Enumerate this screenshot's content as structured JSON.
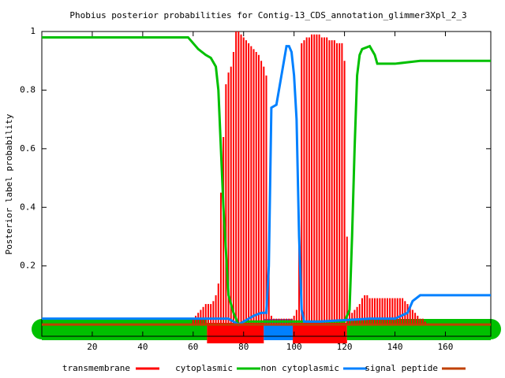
{
  "chart_data": {
    "type": "line",
    "title": "Phobius posterior probabilities for Contig-13_CDS_annotation_glimmer3Xpl_2_3",
    "ylabel": "Posterior label probability",
    "xlim": [
      0,
      178
    ],
    "ylim": [
      -0.04,
      1
    ],
    "xticks": [
      20,
      40,
      60,
      80,
      100,
      120,
      140,
      160
    ],
    "yticks": [
      0.2,
      0.4,
      0.6,
      0.8,
      1
    ],
    "series": [
      {
        "name": "transmembrane",
        "color": "#ff0000",
        "style": "impulses",
        "x": [
          60,
          61,
          62,
          63,
          64,
          65,
          66,
          67,
          68,
          69,
          70,
          71,
          72,
          73,
          74,
          75,
          76,
          77,
          78,
          79,
          80,
          81,
          82,
          83,
          84,
          85,
          86,
          87,
          88,
          89,
          90,
          91,
          92,
          93,
          94,
          95,
          96,
          97,
          98,
          99,
          100,
          101,
          102,
          103,
          104,
          105,
          106,
          107,
          108,
          109,
          110,
          111,
          112,
          113,
          114,
          115,
          116,
          117,
          118,
          119,
          120,
          121,
          122,
          123,
          124,
          125,
          126,
          127,
          128,
          129,
          130,
          131,
          132,
          133,
          134,
          135,
          136,
          137,
          138,
          139,
          140,
          141,
          142,
          143,
          144,
          145,
          146,
          147,
          148,
          149,
          150,
          151,
          152
        ],
        "values": [
          0.02,
          0.03,
          0.04,
          0.05,
          0.06,
          0.07,
          0.07,
          0.07,
          0.08,
          0.1,
          0.14,
          0.45,
          0.64,
          0.82,
          0.86,
          0.88,
          0.93,
          1.0,
          1.0,
          0.99,
          0.98,
          0.97,
          0.96,
          0.95,
          0.94,
          0.93,
          0.92,
          0.9,
          0.88,
          0.85,
          0.2,
          0.03,
          0.02,
          0.02,
          0.02,
          0.02,
          0.02,
          0.02,
          0.02,
          0.02,
          0.03,
          0.05,
          0.3,
          0.96,
          0.97,
          0.98,
          0.98,
          0.99,
          0.99,
          0.99,
          0.99,
          0.98,
          0.98,
          0.98,
          0.97,
          0.97,
          0.97,
          0.96,
          0.96,
          0.96,
          0.9,
          0.3,
          0.05,
          0.04,
          0.05,
          0.06,
          0.07,
          0.09,
          0.1,
          0.1,
          0.09,
          0.09,
          0.09,
          0.09,
          0.09,
          0.09,
          0.09,
          0.09,
          0.09,
          0.09,
          0.09,
          0.09,
          0.09,
          0.09,
          0.08,
          0.07,
          0.06,
          0.05,
          0.04,
          0.03,
          0.02,
          0.02,
          0.01
        ]
      },
      {
        "name": "cytoplasmic",
        "color": "#00c000",
        "style": "line",
        "x": [
          0,
          58,
          62,
          65,
          67,
          69,
          70,
          71,
          72,
          73,
          74,
          76,
          78,
          80,
          100,
          120,
          122,
          123,
          124,
          125,
          126,
          127,
          130,
          132,
          133,
          140,
          150,
          178
        ],
        "values": [
          0.98,
          0.98,
          0.94,
          0.92,
          0.91,
          0.88,
          0.8,
          0.6,
          0.4,
          0.25,
          0.1,
          0.04,
          0.0,
          0.01,
          0.01,
          0.01,
          0.05,
          0.3,
          0.6,
          0.85,
          0.92,
          0.94,
          0.95,
          0.92,
          0.89,
          0.89,
          0.9,
          0.9
        ]
      },
      {
        "name": "non cytoplasmic",
        "color": "#0080ff",
        "style": "line",
        "x": [
          0,
          60,
          70,
          74,
          78,
          84,
          87,
          89,
          90,
          91,
          93,
          95,
          97,
          98,
          99,
          100,
          101,
          102,
          103,
          104,
          110,
          130,
          140,
          145,
          147,
          150,
          178
        ],
        "values": [
          0.02,
          0.02,
          0.02,
          0.02,
          0.0,
          0.03,
          0.04,
          0.04,
          0.2,
          0.74,
          0.75,
          0.85,
          0.95,
          0.95,
          0.93,
          0.85,
          0.7,
          0.3,
          0.05,
          0.01,
          0.01,
          0.02,
          0.02,
          0.04,
          0.08,
          0.1,
          0.1
        ]
      },
      {
        "name": "signal peptide",
        "color": "#c04000",
        "style": "line",
        "x": [
          0,
          178
        ],
        "values": [
          0,
          0
        ]
      }
    ],
    "regions": [
      {
        "start": 0,
        "end": 65.5,
        "color": "#00c000"
      },
      {
        "start": 65.5,
        "end": 88,
        "color": "#ff0000"
      },
      {
        "start": 88,
        "end": 99.5,
        "color": "#0080ff"
      },
      {
        "start": 99.5,
        "end": 121,
        "color": "#ff0000"
      },
      {
        "start": 121,
        "end": 178,
        "color": "#00c000"
      }
    ]
  }
}
